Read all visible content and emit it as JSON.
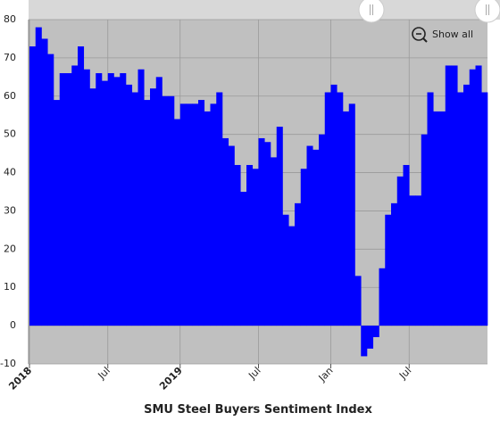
{
  "chart_data": {
    "type": "step-area",
    "title": "SMU Steel Buyers Sentiment Index",
    "categories": [
      "2018",
      null,
      null,
      null,
      null,
      null,
      null,
      null,
      null,
      null,
      null,
      null,
      null,
      "Jul",
      null,
      null,
      null,
      null,
      null,
      null,
      null,
      null,
      null,
      null,
      null,
      "2019",
      null,
      null,
      null,
      null,
      null,
      null,
      null,
      null,
      null,
      null,
      null,
      null,
      "Jul",
      null,
      null,
      null,
      null,
      null,
      null,
      null,
      null,
      null,
      null,
      null,
      "Jan",
      null,
      null,
      null,
      null,
      null,
      null,
      null,
      null,
      null,
      null,
      null,
      null,
      "Jul",
      null,
      null,
      null,
      null,
      null,
      null,
      null,
      null,
      null,
      null,
      null,
      null
    ],
    "values": [
      73,
      78,
      75,
      71,
      59,
      66,
      66,
      68,
      73,
      67,
      62,
      66,
      64,
      66,
      65,
      66,
      63,
      61,
      67,
      59,
      62,
      65,
      60,
      60,
      54,
      58,
      58,
      58,
      59,
      56,
      58,
      61,
      49,
      47,
      42,
      35,
      42,
      41,
      49,
      48,
      44,
      52,
      29,
      26,
      32,
      41,
      47,
      46,
      50,
      61,
      63,
      61,
      56,
      58,
      13,
      -8,
      -6,
      -3,
      15,
      29,
      32,
      39,
      42,
      34,
      34,
      50,
      61,
      56,
      56,
      68,
      68,
      61,
      63,
      67,
      68,
      61
    ],
    "color": "#0000ff",
    "ylim": [
      -10,
      80
    ],
    "yticks": [
      -10,
      0,
      10,
      20,
      30,
      40,
      50,
      60,
      70,
      80
    ],
    "grid": true
  },
  "ui": {
    "reset_button": "Show all"
  }
}
